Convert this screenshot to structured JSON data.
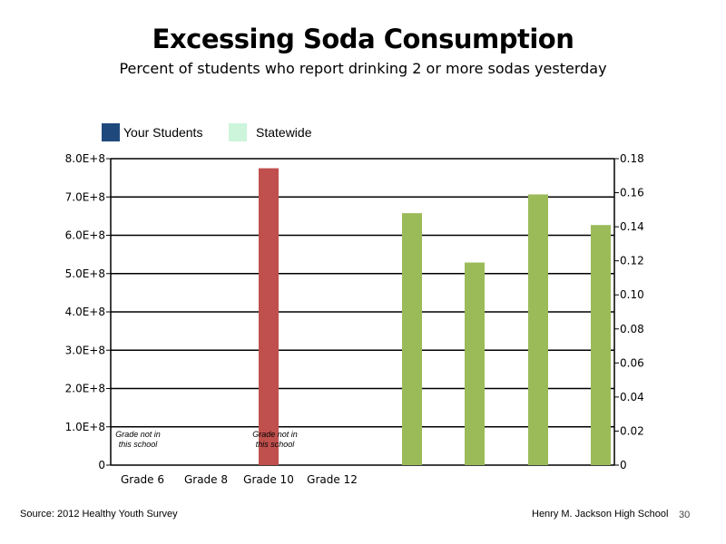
{
  "title": "Excessing Soda Consumption",
  "subtitle": "Percent of students who report drinking 2 or more sodas yesterday",
  "legend": [
    {
      "label": "Your Students",
      "color": "#1f497d"
    },
    {
      "label": "Statewide",
      "color": "#ccf5dc"
    }
  ],
  "footer": {
    "source": "Source: 2012 Healthy Youth Survey",
    "school": "Henry M. Jackson High School",
    "page": "30"
  },
  "chart_data": {
    "type": "bar",
    "categories": [
      "Grade 6",
      "Grade 8",
      "Grade 10",
      "Grade 12"
    ],
    "left_axis": {
      "ticks": [
        "0",
        "1.0E+8",
        "2.0E+8",
        "3.0E+8",
        "4.0E+8",
        "5.0E+8",
        "6.0E+8",
        "7.0E+8",
        "8.0E+8"
      ],
      "ylim": [
        0,
        800000000
      ]
    },
    "right_axis": {
      "ticks": [
        "0",
        "0.02",
        "0.04",
        "0.06",
        "0.08",
        "0.10",
        "0.12",
        "0.14",
        "0.16",
        "0.18"
      ],
      "ylim": [
        0,
        0.18
      ]
    },
    "grid": true,
    "bars_left_axis": [
      {
        "category": "Grade 10",
        "value": 775000000,
        "color": "#c0504d"
      }
    ],
    "bars_right_axis": [
      {
        "value": 0.148,
        "color": "#9bbb59"
      },
      {
        "value": 0.119,
        "color": "#9bbb59"
      },
      {
        "value": 0.159,
        "color": "#9bbb59"
      },
      {
        "value": 0.141,
        "color": "#9bbb59"
      }
    ],
    "annotations": [
      {
        "category": "Grade 6",
        "text": [
          "Grade not in",
          "this school"
        ]
      },
      {
        "category": "Grade 10",
        "text": [
          "Grade not in",
          "this school"
        ]
      }
    ]
  }
}
